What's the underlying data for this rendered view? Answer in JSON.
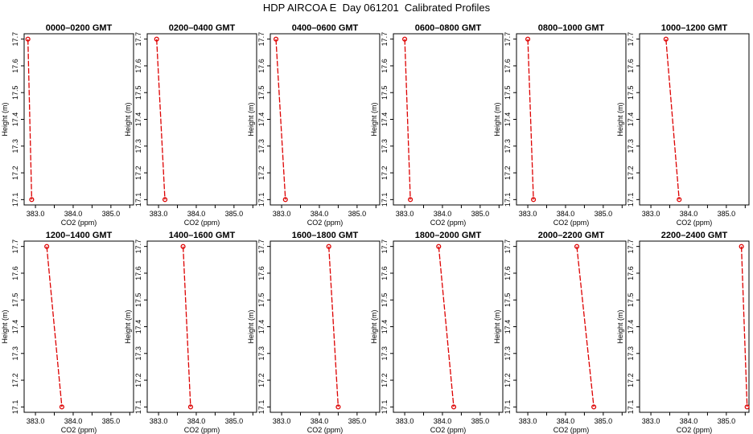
{
  "title": "HDP AIRCOA E  Day 061201  Calibrated Profiles",
  "style": {
    "line_color": "#dd0000",
    "marker_color": "#dd0000",
    "axis_color": "#000000"
  },
  "chart_data": [
    {
      "type": "line",
      "title": "0000–0200 GMT",
      "xlabel": "CO2 (ppm)",
      "ylabel": "Height (m)",
      "xlim": [
        382.7,
        385.6
      ],
      "ylim": [
        17.08,
        17.72
      ],
      "x_ticks": [
        "383.0",
        "384.0",
        "385.0"
      ],
      "y_ticks": [
        "17.1",
        "17.2",
        "17.3",
        "17.4",
        "17.5",
        "17.6",
        "17.7"
      ],
      "series": [
        {
          "x": [
            382.8,
            382.9
          ],
          "y": [
            17.7,
            17.1
          ]
        }
      ]
    },
    {
      "type": "line",
      "title": "0200–0400 GMT",
      "xlabel": "CO2 (ppm)",
      "ylabel": "Height (m)",
      "xlim": [
        382.7,
        385.6
      ],
      "ylim": [
        17.08,
        17.72
      ],
      "x_ticks": [
        "383.0",
        "384.0",
        "385.0"
      ],
      "y_ticks": [
        "17.1",
        "17.2",
        "17.3",
        "17.4",
        "17.5",
        "17.6",
        "17.7"
      ],
      "series": [
        {
          "x": [
            382.95,
            383.17
          ],
          "y": [
            17.7,
            17.1
          ]
        }
      ]
    },
    {
      "type": "line",
      "title": "0400–0600 GMT",
      "xlabel": "CO2 (ppm)",
      "ylabel": "Height (m)",
      "xlim": [
        382.7,
        385.6
      ],
      "ylim": [
        17.08,
        17.72
      ],
      "x_ticks": [
        "383.0",
        "384.0",
        "385.0"
      ],
      "y_ticks": [
        "17.1",
        "17.2",
        "17.3",
        "17.4",
        "17.5",
        "17.6",
        "17.7"
      ],
      "series": [
        {
          "x": [
            382.85,
            383.1
          ],
          "y": [
            17.7,
            17.1
          ]
        }
      ]
    },
    {
      "type": "line",
      "title": "0600–0800 GMT",
      "xlabel": "CO2 (ppm)",
      "ylabel": "Height (m)",
      "xlim": [
        382.7,
        385.6
      ],
      "ylim": [
        17.08,
        17.72
      ],
      "x_ticks": [
        "383.0",
        "384.0",
        "385.0"
      ],
      "y_ticks": [
        "17.1",
        "17.2",
        "17.3",
        "17.4",
        "17.5",
        "17.6",
        "17.7"
      ],
      "series": [
        {
          "x": [
            383.0,
            383.15
          ],
          "y": [
            17.7,
            17.1
          ]
        }
      ]
    },
    {
      "type": "line",
      "title": "0800–1000 GMT",
      "xlabel": "CO2 (ppm)",
      "ylabel": "Height (m)",
      "xlim": [
        382.7,
        385.6
      ],
      "ylim": [
        17.08,
        17.72
      ],
      "x_ticks": [
        "383.0",
        "384.0",
        "385.0"
      ],
      "y_ticks": [
        "17.1",
        "17.2",
        "17.3",
        "17.4",
        "17.5",
        "17.6",
        "17.7"
      ],
      "series": [
        {
          "x": [
            383.0,
            383.15
          ],
          "y": [
            17.7,
            17.1
          ]
        }
      ]
    },
    {
      "type": "line",
      "title": "1000–1200 GMT",
      "xlabel": "CO2 (ppm)",
      "ylabel": "Height (m)",
      "xlim": [
        382.7,
        385.6
      ],
      "ylim": [
        17.08,
        17.72
      ],
      "x_ticks": [
        "383.0",
        "384.0",
        "385.0"
      ],
      "y_ticks": [
        "17.1",
        "17.2",
        "17.3",
        "17.4",
        "17.5",
        "17.6",
        "17.7"
      ],
      "series": [
        {
          "x": [
            383.4,
            383.75
          ],
          "y": [
            17.7,
            17.1
          ]
        }
      ]
    },
    {
      "type": "line",
      "title": "1200–1400 GMT",
      "xlabel": "CO2 (ppm)",
      "ylabel": "Height (m)",
      "xlim": [
        382.7,
        385.6
      ],
      "ylim": [
        17.08,
        17.72
      ],
      "x_ticks": [
        "383.0",
        "384.0",
        "385.0"
      ],
      "y_ticks": [
        "17.1",
        "17.2",
        "17.3",
        "17.4",
        "17.5",
        "17.6",
        "17.7"
      ],
      "series": [
        {
          "x": [
            383.3,
            383.7
          ],
          "y": [
            17.7,
            17.1
          ]
        }
      ]
    },
    {
      "type": "line",
      "title": "1400–1600 GMT",
      "xlabel": "CO2 (ppm)",
      "ylabel": "Height (m)",
      "xlim": [
        382.7,
        385.6
      ],
      "ylim": [
        17.08,
        17.72
      ],
      "x_ticks": [
        "383.0",
        "384.0",
        "385.0"
      ],
      "y_ticks": [
        "17.1",
        "17.2",
        "17.3",
        "17.4",
        "17.5",
        "17.6",
        "17.7"
      ],
      "series": [
        {
          "x": [
            383.65,
            383.85
          ],
          "y": [
            17.7,
            17.1
          ]
        }
      ]
    },
    {
      "type": "line",
      "title": "1600–1800 GMT",
      "xlabel": "CO2 (ppm)",
      "ylabel": "Height (m)",
      "xlim": [
        382.7,
        385.6
      ],
      "ylim": [
        17.08,
        17.72
      ],
      "x_ticks": [
        "383.0",
        "384.0",
        "385.0"
      ],
      "y_ticks": [
        "17.1",
        "17.2",
        "17.3",
        "17.4",
        "17.5",
        "17.6",
        "17.7"
      ],
      "series": [
        {
          "x": [
            384.25,
            384.5
          ],
          "y": [
            17.7,
            17.1
          ]
        }
      ]
    },
    {
      "type": "line",
      "title": "1800–2000 GMT",
      "xlabel": "CO2 (ppm)",
      "ylabel": "Height (m)",
      "xlim": [
        382.7,
        385.6
      ],
      "ylim": [
        17.08,
        17.72
      ],
      "x_ticks": [
        "383.0",
        "384.0",
        "385.0"
      ],
      "y_ticks": [
        "17.1",
        "17.2",
        "17.3",
        "17.4",
        "17.5",
        "17.6",
        "17.7"
      ],
      "series": [
        {
          "x": [
            383.9,
            384.3
          ],
          "y": [
            17.7,
            17.1
          ]
        }
      ]
    },
    {
      "type": "line",
      "title": "2000–2200 GMT",
      "xlabel": "CO2 (ppm)",
      "ylabel": "Height (m)",
      "xlim": [
        382.7,
        385.6
      ],
      "ylim": [
        17.08,
        17.72
      ],
      "x_ticks": [
        "383.0",
        "384.0",
        "385.0"
      ],
      "y_ticks": [
        "17.1",
        "17.2",
        "17.3",
        "17.4",
        "17.5",
        "17.6",
        "17.7"
      ],
      "series": [
        {
          "x": [
            384.3,
            384.75
          ],
          "y": [
            17.7,
            17.1
          ]
        }
      ]
    },
    {
      "type": "line",
      "title": "2200–2400 GMT",
      "xlabel": "CO2 (ppm)",
      "ylabel": "Height (m)",
      "xlim": [
        382.7,
        385.6
      ],
      "ylim": [
        17.08,
        17.72
      ],
      "x_ticks": [
        "383.0",
        "384.0",
        "385.0"
      ],
      "y_ticks": [
        "17.1",
        "17.2",
        "17.3",
        "17.4",
        "17.5",
        "17.6",
        "17.7"
      ],
      "series": [
        {
          "x": [
            385.4,
            385.55
          ],
          "y": [
            17.7,
            17.1
          ]
        }
      ]
    }
  ]
}
